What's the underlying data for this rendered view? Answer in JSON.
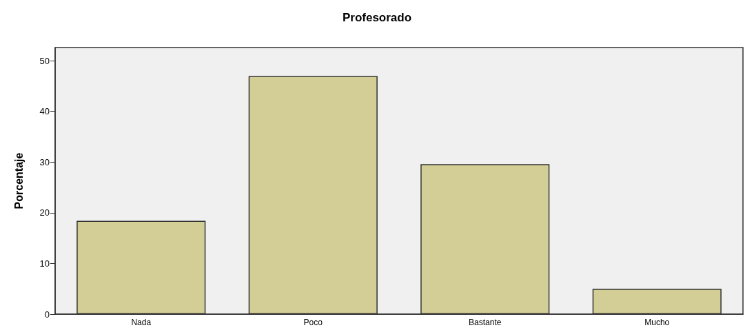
{
  "chart_data": {
    "type": "bar",
    "title": "Profesorado",
    "ylabel": "Porcentaje",
    "categories": [
      "Nada",
      "Poco",
      "Bastante",
      "Mucho"
    ],
    "values": [
      18.4,
      47.0,
      29.6,
      5.0
    ],
    "color": "#d3cd96",
    "ylim": [
      0,
      52.6
    ],
    "yticks": [
      0,
      10,
      20,
      30,
      40,
      50
    ],
    "grid": false
  }
}
